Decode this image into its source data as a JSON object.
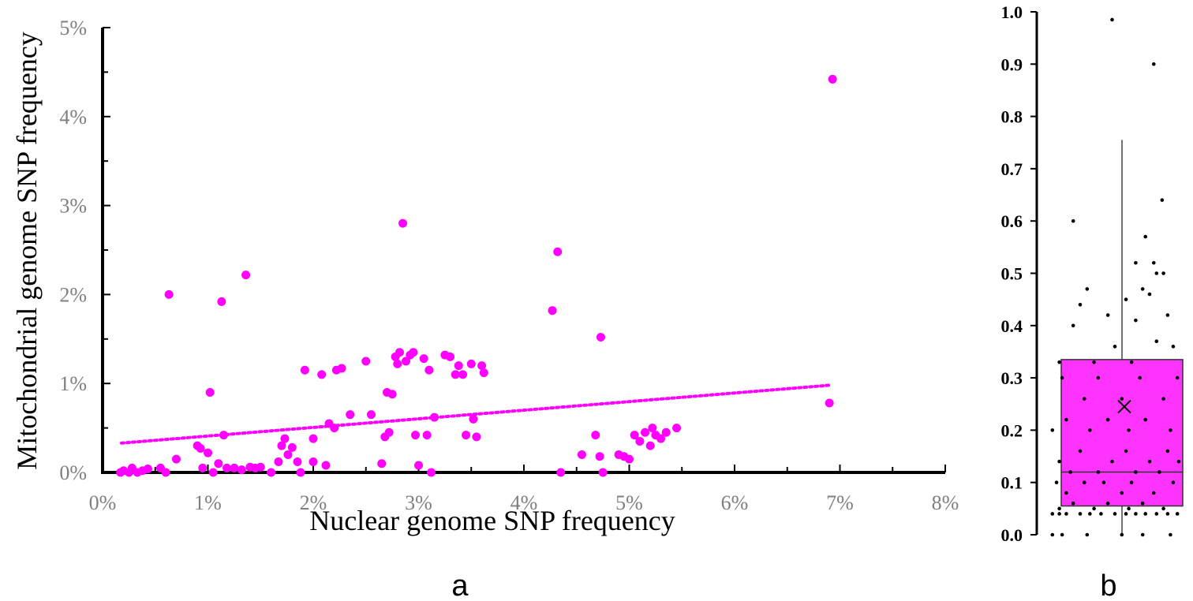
{
  "panel_labels": {
    "a": "a",
    "b": "b"
  },
  "colors": {
    "points": "#ff00ff",
    "box_fill": "#ff33ff",
    "jitter": "#000000",
    "axis": "#000000",
    "tick_text_a": "#7f7f7f"
  },
  "chart_data": [
    {
      "type": "scatter",
      "panel": "a",
      "xlabel": "Nuclear genome SNP frequency",
      "ylabel": "Mitochondrial genome SNP frequency",
      "xlim": [
        0,
        8
      ],
      "ylim": [
        0,
        5
      ],
      "x_ticks": [
        "0%",
        "1%",
        "2%",
        "3%",
        "4%",
        "5%",
        "6%",
        "7%",
        "8%"
      ],
      "y_ticks": [
        "0%",
        "1%",
        "2%",
        "3%",
        "4%",
        "5%"
      ],
      "unit": "%",
      "points": [
        [
          0.17,
          0.0
        ],
        [
          0.2,
          0.02
        ],
        [
          0.25,
          0.0
        ],
        [
          0.28,
          0.05
        ],
        [
          0.33,
          0.0
        ],
        [
          0.38,
          0.02
        ],
        [
          0.43,
          0.04
        ],
        [
          0.55,
          0.05
        ],
        [
          0.6,
          0.0
        ],
        [
          0.7,
          0.15
        ],
        [
          0.63,
          2.0
        ],
        [
          0.9,
          0.3
        ],
        [
          0.93,
          0.27
        ],
        [
          0.95,
          0.05
        ],
        [
          1.0,
          0.22
        ],
        [
          1.02,
          0.9
        ],
        [
          1.05,
          0.0
        ],
        [
          1.1,
          0.1
        ],
        [
          1.13,
          1.92
        ],
        [
          1.15,
          0.42
        ],
        [
          1.18,
          0.05
        ],
        [
          1.25,
          0.05
        ],
        [
          1.32,
          0.03
        ],
        [
          1.36,
          2.22
        ],
        [
          1.4,
          0.06
        ],
        [
          1.45,
          0.05
        ],
        [
          1.5,
          0.06
        ],
        [
          1.6,
          0.0
        ],
        [
          1.67,
          0.12
        ],
        [
          1.7,
          0.3
        ],
        [
          1.73,
          0.38
        ],
        [
          1.76,
          0.2
        ],
        [
          1.8,
          0.28
        ],
        [
          1.85,
          0.12
        ],
        [
          1.88,
          0.0
        ],
        [
          1.92,
          1.15
        ],
        [
          2.0,
          0.38
        ],
        [
          2.0,
          0.12
        ],
        [
          2.08,
          1.1
        ],
        [
          2.12,
          0.08
        ],
        [
          2.15,
          0.55
        ],
        [
          2.2,
          0.5
        ],
        [
          2.22,
          1.15
        ],
        [
          2.27,
          1.17
        ],
        [
          2.35,
          0.65
        ],
        [
          2.5,
          1.25
        ],
        [
          2.55,
          0.65
        ],
        [
          2.65,
          0.1
        ],
        [
          2.68,
          0.4
        ],
        [
          2.7,
          0.9
        ],
        [
          2.72,
          0.45
        ],
        [
          2.75,
          0.88
        ],
        [
          2.78,
          1.3
        ],
        [
          2.8,
          1.22
        ],
        [
          2.82,
          1.35
        ],
        [
          2.85,
          2.8
        ],
        [
          2.88,
          1.25
        ],
        [
          2.92,
          1.32
        ],
        [
          2.95,
          1.35
        ],
        [
          2.97,
          0.42
        ],
        [
          3.0,
          0.08
        ],
        [
          3.05,
          1.28
        ],
        [
          3.08,
          0.42
        ],
        [
          3.1,
          1.15
        ],
        [
          3.12,
          0.0
        ],
        [
          3.15,
          0.62
        ],
        [
          3.25,
          1.32
        ],
        [
          3.3,
          1.3
        ],
        [
          3.35,
          1.1
        ],
        [
          3.38,
          1.2
        ],
        [
          3.42,
          1.1
        ],
        [
          3.45,
          0.42
        ],
        [
          3.5,
          1.22
        ],
        [
          3.52,
          0.6
        ],
        [
          3.55,
          0.4
        ],
        [
          3.6,
          1.2
        ],
        [
          3.62,
          1.12
        ],
        [
          4.27,
          1.82
        ],
        [
          4.32,
          2.48
        ],
        [
          4.35,
          0.0
        ],
        [
          4.55,
          0.2
        ],
        [
          4.68,
          0.42
        ],
        [
          4.72,
          0.18
        ],
        [
          4.73,
          1.52
        ],
        [
          4.75,
          0.0
        ],
        [
          4.9,
          0.2
        ],
        [
          4.95,
          0.18
        ],
        [
          5.0,
          0.15
        ],
        [
          5.05,
          0.42
        ],
        [
          5.1,
          0.35
        ],
        [
          5.15,
          0.45
        ],
        [
          5.2,
          0.3
        ],
        [
          5.22,
          0.5
        ],
        [
          5.25,
          0.42
        ],
        [
          5.3,
          0.38
        ],
        [
          5.35,
          0.45
        ],
        [
          5.45,
          0.5
        ],
        [
          6.9,
          0.78
        ],
        [
          6.93,
          4.42
        ]
      ],
      "trendline": {
        "style": "dotted",
        "from": [
          0.18,
          0.33
        ],
        "to": [
          6.9,
          0.98
        ]
      }
    },
    {
      "type": "box",
      "panel": "b",
      "ylim": [
        0,
        1
      ],
      "y_ticks": [
        "0.0",
        "0.1",
        "0.2",
        "0.3",
        "0.4",
        "0.5",
        "0.6",
        "0.7",
        "0.8",
        "0.9",
        "1.0"
      ],
      "box": {
        "min": 0.0,
        "q1": 0.055,
        "median": 0.12,
        "mean": 0.245,
        "q3": 0.335,
        "whisker_high": 0.755
      },
      "jitter_points": [
        [
          0.05,
          0.0
        ],
        [
          0.12,
          0.0
        ],
        [
          0.3,
          0.0
        ],
        [
          0.55,
          0.0
        ],
        [
          0.7,
          0.0
        ],
        [
          0.9,
          0.0
        ],
        [
          0.05,
          0.04
        ],
        [
          0.1,
          0.04
        ],
        [
          0.15,
          0.04
        ],
        [
          0.25,
          0.04
        ],
        [
          0.32,
          0.04
        ],
        [
          0.4,
          0.04
        ],
        [
          0.5,
          0.04
        ],
        [
          0.58,
          0.04
        ],
        [
          0.65,
          0.04
        ],
        [
          0.72,
          0.04
        ],
        [
          0.8,
          0.04
        ],
        [
          0.88,
          0.04
        ],
        [
          0.95,
          0.04
        ],
        [
          0.1,
          0.05
        ],
        [
          0.35,
          0.05
        ],
        [
          0.6,
          0.05
        ],
        [
          0.85,
          0.05
        ],
        [
          0.2,
          0.06
        ],
        [
          0.45,
          0.06
        ],
        [
          0.7,
          0.06
        ],
        [
          0.15,
          0.08
        ],
        [
          0.55,
          0.08
        ],
        [
          0.78,
          0.08
        ],
        [
          0.08,
          0.1
        ],
        [
          0.28,
          0.1
        ],
        [
          0.42,
          0.1
        ],
        [
          0.62,
          0.1
        ],
        [
          0.92,
          0.1
        ],
        [
          0.18,
          0.12
        ],
        [
          0.38,
          0.12
        ],
        [
          0.65,
          0.12
        ],
        [
          0.82,
          0.12
        ],
        [
          0.1,
          0.14
        ],
        [
          0.48,
          0.14
        ],
        [
          0.75,
          0.14
        ],
        [
          0.96,
          0.14
        ],
        [
          0.25,
          0.16
        ],
        [
          0.58,
          0.16
        ],
        [
          0.88,
          0.16
        ],
        [
          0.05,
          0.2
        ],
        [
          0.32,
          0.2
        ],
        [
          0.6,
          0.2
        ],
        [
          0.9,
          0.2
        ],
        [
          0.15,
          0.22
        ],
        [
          0.45,
          0.22
        ],
        [
          0.72,
          0.22
        ],
        [
          0.28,
          0.26
        ],
        [
          0.55,
          0.26
        ],
        [
          0.85,
          0.26
        ],
        [
          0.12,
          0.3
        ],
        [
          0.38,
          0.3
        ],
        [
          0.68,
          0.3
        ],
        [
          0.95,
          0.3
        ],
        [
          0.35,
          0.33
        ],
        [
          0.62,
          0.33
        ],
        [
          0.1,
          0.33
        ],
        [
          0.5,
          0.36
        ],
        [
          0.92,
          0.36
        ],
        [
          0.8,
          0.37
        ],
        [
          0.2,
          0.4
        ],
        [
          0.45,
          0.42
        ],
        [
          0.65,
          0.41
        ],
        [
          0.88,
          0.42
        ],
        [
          0.25,
          0.44
        ],
        [
          0.58,
          0.45
        ],
        [
          0.75,
          0.46
        ],
        [
          0.3,
          0.47
        ],
        [
          0.7,
          0.47
        ],
        [
          0.85,
          0.5
        ],
        [
          0.78,
          0.52
        ],
        [
          0.8,
          0.5
        ],
        [
          0.65,
          0.52
        ],
        [
          0.72,
          0.57
        ],
        [
          0.2,
          0.6
        ],
        [
          0.84,
          0.64
        ],
        [
          0.78,
          0.9
        ],
        [
          0.48,
          0.985
        ]
      ]
    }
  ]
}
